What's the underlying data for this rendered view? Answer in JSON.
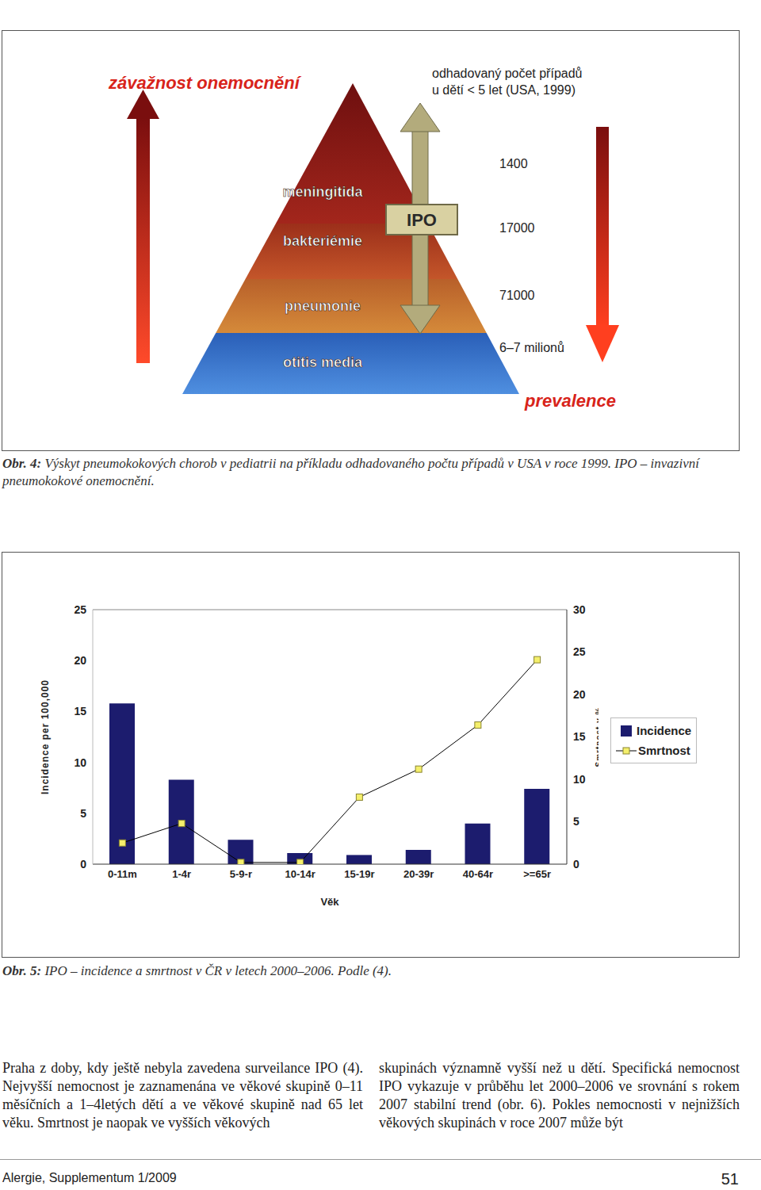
{
  "figure4": {
    "title": "závažnost onemocnění",
    "bottom_label": "prevalence",
    "box_label": "IPO",
    "header": [
      "odhadovaný počet případů",
      "u dětí < 5 let (USA, 1999)"
    ],
    "levels": [
      {
        "label": "meningitida",
        "cases": "1400"
      },
      {
        "label": "bakteriémie",
        "cases": "17000"
      },
      {
        "label": "pneumonie",
        "cases": "71000"
      },
      {
        "label": "otitis media",
        "cases": "6–7 milionů"
      }
    ],
    "caption_label": "Obr. 4:",
    "caption": "Výskyt pneumokokových chorob v pediatrii na příkladu odhadovaného počtu případů v USA v roce 1999. IPO – invazivní pneumokokové onemocnění."
  },
  "chart_data": {
    "type": "bar",
    "categories": [
      "0-11m",
      "1-4r",
      "5-9-r",
      "10-14r",
      "15-19r",
      "20-39r",
      "40-64r",
      ">=65r"
    ],
    "series": [
      {
        "name": "Incidence",
        "type": "bar",
        "color": "#1c1c6e",
        "values": [
          15.8,
          8.3,
          2.4,
          1.1,
          0.9,
          1.4,
          4.0,
          7.4
        ]
      },
      {
        "name": "Smrtnost",
        "type": "line",
        "axis": "y2",
        "color": "#000000",
        "marker": "square",
        "values": [
          2.5,
          4.8,
          0.2,
          0.2,
          7.9,
          11.2,
          16.4,
          24.1
        ]
      }
    ],
    "xlabel": "Věk",
    "ylabel": "Incidence per 100,000",
    "y2label": "Smrtnost v %",
    "ylim": [
      0,
      25
    ],
    "yticks": [
      0,
      5,
      10,
      15,
      20,
      25
    ],
    "y2lim": [
      0,
      30
    ],
    "y2ticks": [
      0,
      5,
      10,
      15,
      20,
      25,
      30
    ],
    "legend": "right",
    "grid": false
  },
  "figure5": {
    "caption_label": "Obr. 5:",
    "caption": "IPO – incidence a smrtnost v ČR v letech 2000–2006. Podle (4)."
  },
  "body": [
    "Praha z doby, kdy ještě nebyla zavedena surveilance IPO (4). Nejvyšší nemocnost je zaznamenána ve věkové skupině 0–11 měsíčních a 1–4letých dětí a ve věkové skupině nad 65 let věku. Smrtnost je naopak ve vyšších věkových",
    "skupinách významně vyšší než u dětí. Specifická nemocnost IPO vykazuje v průběhu let 2000–2006 ve srovnání s rokem 2007 stabilní trend (obr. 6). Pokles nemocnosti v nejnižších věkových skupinách v roce 2007 může být"
  ],
  "footer": {
    "journal": "Alergie, Supplementum 1/2009",
    "page": "51"
  }
}
